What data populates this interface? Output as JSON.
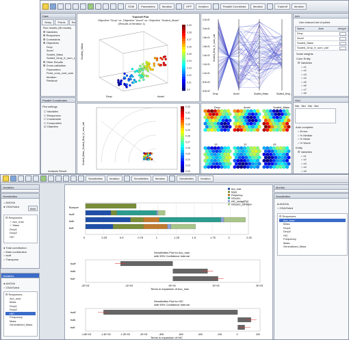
{
  "top": {
    "toolbar": [
      "SOM",
      "Parameters",
      "Iteration",
      "HPF",
      "Iteration",
      "Parallel Coordinate",
      "Iteration",
      "Tradeoff",
      "Iteration"
    ],
    "left_tabs": [
      "Setup",
      "Points",
      "Ranges"
    ],
    "left_header": "Data",
    "left_tree": [
      "Run results (48 results)",
      "Variables",
      "Responses",
      "Constraints",
      "Objectives",
      "Drop",
      "Accel",
      "Scaled_Mass",
      "Scaled_Drop_fr_sum_call",
      "Other Results",
      "Cross-validation",
      "Parameters",
      "Point_cons_cost_sum",
      "Iteration",
      "Residual"
    ],
    "pc_panel_title": "Parallel Coordinates",
    "pc_panel_sub": "Plot settings",
    "pc_options": [
      "Variables",
      "Responses",
      "Constraints",
      "Composites",
      "Objective"
    ],
    "tradeoff_title": "Tradeoff Plot",
    "tradeoff_subtitle": "Objective \"Drop\" vs. Objective \"Accel\" vs. Objective \"Scaled_Mass\"",
    "tradeoff_subtitle2": "(Results of iteration 1)",
    "tradeoff_axes": [
      "Scaled_Mass",
      "Drop",
      "Accel"
    ],
    "colorbar1_ticks": [
      "0.29",
      "0.28",
      "0.27",
      "0.26",
      "0.25",
      "0.24",
      "0.23",
      "0.22",
      "0.21",
      "0.2"
    ],
    "colorbar2_ticks": [
      "0.33",
      "0.32",
      "0.31",
      "0.30",
      "0.29",
      "0.28",
      "0.27",
      "0.26",
      "0.25",
      "0.24",
      "0.23",
      "0.22"
    ],
    "pc_ylabel": "Scaled_Drop_fr_sum_call",
    "pc_ticks": [
      "2.2e-01",
      "2.0e-01",
      "1.8e-01",
      "1.6e-01",
      "1.4e-01",
      "1.2e-01",
      "1.0e-01",
      "8.0e-02",
      "6.0e-02"
    ],
    "pc_axes": [
      "Drop",
      "Accel",
      "Scaled_Mass",
      "Scaled_Drop_fr_sum_call"
    ],
    "polar_ylabel": "Scaled_Mass_Scaled_Drop_fr_sum_call",
    "som_titles": [
      "Drop",
      "Accel",
      "Scaled_Mass",
      "13",
      "12",
      "43"
    ],
    "right_header": "Info",
    "right_subtitle": "Use reduced set of points",
    "right_cols": [
      "Name",
      "Axis",
      "Weight"
    ],
    "right_rows": [
      "Drop",
      "Accel",
      "Scaled_Mass",
      "Scaled_Drop_fr_sum_call"
    ],
    "right_check": "Scale weights",
    "right_tree_title": "Color Entity",
    "right_tree": [
      "Variables",
      "x1",
      "x2",
      "x3",
      "x4",
      "x5",
      "x6",
      "x7",
      "x8",
      "x9"
    ],
    "grid_header": "Grid",
    "grid_cols": [
      "Nbr",
      "Nbr",
      "Nbr",
      "Nbr"
    ],
    "color_scheme": "Auto complete",
    "color_options": [
      "Errors",
      "% Median",
      "% Mean",
      "% Worst"
    ],
    "entity_label": "Entity",
    "entity_tree": [
      "Variables",
      "x1",
      "x2",
      "x3",
      "x4",
      "x5",
      "x6",
      "x7"
    ],
    "analysis_label": "Analysis Result"
  },
  "bottom": {
    "toolbar": [
      "Sensitivities",
      "Iteration",
      "Sensitivities",
      "Iteration",
      "Sensitivities",
      "Iteration"
    ],
    "left_header": "Variables",
    "left_header2": "Sensitivities",
    "radio1": [
      "ANOVA",
      "GSA/Sobol"
    ],
    "multi_btn": "Multi",
    "tree1": [
      "Responses",
      "Acc_max",
      "Mass",
      "Drop1",
      "Drop2",
      "HIC"
    ],
    "radio2": [
      "Total contribution",
      "Main contribution",
      "tsoff",
      "Transpose"
    ],
    "left2_header": "Variables",
    "radio3": [
      "ANOVA",
      "GSA/Sobol"
    ],
    "tree2": [
      "Responses",
      "Acc_max",
      "Mass",
      "Drop1",
      "Drop2",
      "HIC",
      "Frequency",
      "Mass",
      "Generalized_Mass"
    ],
    "right_header": "Monitor",
    "right2_header": "Sensitivities",
    "right_radio": [
      "ANOVA",
      "GSA/Sobol"
    ],
    "right_tree": [
      "Responses",
      "Acc_max",
      "Mass",
      "Drop1",
      "Drop2",
      "HIC",
      "Frequency",
      "Mass",
      "Generalized_Mass"
    ],
    "legend": [
      "Acc_max",
      "Mass",
      "Frequency",
      "Intrusion",
      "HIC_mmsg4Ppf",
      "Intrusion_sdPattern"
    ],
    "chart1_ticks": [
      "0",
      "0.25",
      "0.5",
      "0.75",
      "1",
      "1.25",
      "1.5",
      "1.75",
      "2",
      "2.25"
    ],
    "chart2_title": "Sensitivities Plot for Acc_max",
    "chart2_subtitle": "with 90% Confidence Interval",
    "chart2_xlabel": "Terms in expansion of Acc_max",
    "chart2_ticks": [
      "-2E+03",
      "-1E+03",
      "0E+00",
      "1E+03",
      "2E+03"
    ],
    "chart3_title": "Sensitivities Plot for HIC",
    "chart3_subtitle": "with 90% Confidence Interval",
    "chart3_xlabel": "Terms in expansion of HIC",
    "chart3_ticks": [
      "-1.6E+03",
      "-1.4E+03",
      "-1.2E+03",
      "-1E+03",
      "-800",
      "-600",
      "-400",
      "-200",
      "0",
      "200"
    ]
  },
  "chart_data": [
    {
      "type": "bar",
      "orientation": "horizontal-stacked",
      "categories": [
        "Bumper",
        "tsoff",
        "tsdk",
        "tsdf"
      ],
      "series": [
        {
          "name": "Acc_max",
          "values": [
            0,
            0.35,
            0.62,
            0.38
          ],
          "color": "#1f4fa8"
        },
        {
          "name": "Mass",
          "values": [
            0.7,
            0.08,
            0.18,
            0.42
          ],
          "color": "#7a8e3a"
        },
        {
          "name": "Frequency",
          "values": [
            0,
            0,
            0.22,
            0.33
          ],
          "color": "#c07a30"
        },
        {
          "name": "Intrusion",
          "values": [
            0,
            0.55,
            0.85,
            0
          ],
          "color": "#2a9d8f"
        },
        {
          "name": "HIC_mmsg4Ppf",
          "values": [
            0,
            0.02,
            0.04,
            0.05
          ],
          "color": "#8aa0d8"
        },
        {
          "name": "Intrusion_sdPattern",
          "values": [
            0,
            0.1,
            0.3,
            0.34
          ],
          "color": "#a9c58a"
        }
      ],
      "xlim": [
        0,
        2.25
      ]
    },
    {
      "type": "bar",
      "orientation": "horizontal",
      "title": "Sensitivities Plot for Acc_max",
      "categories": [
        "tsoff",
        "tsdk",
        "tsdf"
      ],
      "values": [
        -1500,
        1000,
        1300
      ],
      "xlim": [
        -2500,
        2500
      ]
    },
    {
      "type": "bar",
      "orientation": "horizontal",
      "title": "Sensitivities Plot for HIC",
      "categories": [
        "tsoff",
        "tsdk",
        "tsdf"
      ],
      "values": [
        -1500,
        150,
        80
      ],
      "xlim": [
        -1700,
        250
      ]
    }
  ]
}
